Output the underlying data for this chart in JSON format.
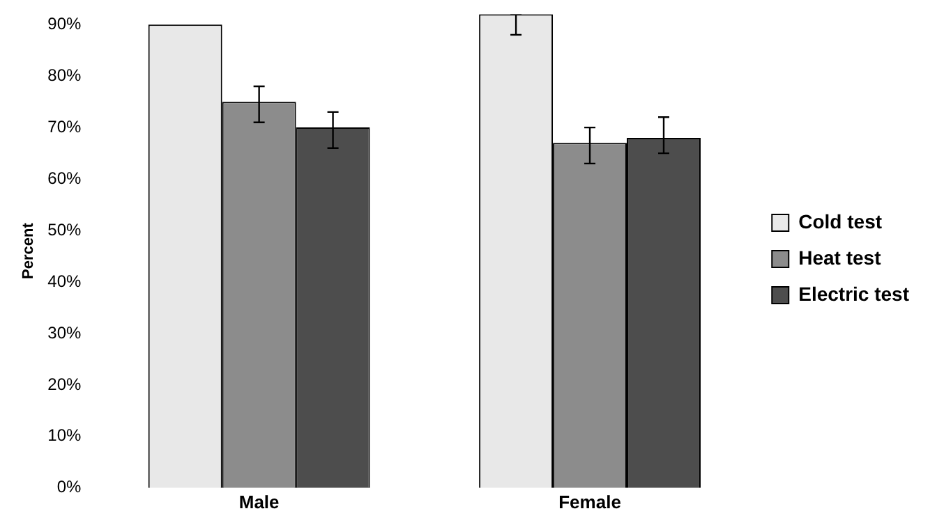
{
  "chart_data": {
    "type": "bar",
    "ylabel": "Percent",
    "categories": [
      "Male",
      "Female"
    ],
    "series": [
      {
        "name": "Cold test",
        "color": "#e8e8e8",
        "values": [
          90,
          92
        ],
        "errors": [
          null,
          [
            88,
            92
          ]
        ]
      },
      {
        "name": "Heat test",
        "color": "#8c8c8c",
        "values": [
          75,
          67
        ],
        "errors": [
          [
            71,
            78
          ],
          [
            63,
            70
          ]
        ]
      },
      {
        "name": "Electric test",
        "color": "#4d4d4d",
        "values": [
          70,
          68
        ],
        "errors": [
          [
            66,
            73
          ],
          [
            65,
            72
          ]
        ]
      }
    ],
    "ylim": [
      0,
      92
    ],
    "yticks": [
      {
        "value": 0,
        "label": "0%"
      },
      {
        "value": 10,
        "label": "10%"
      },
      {
        "value": 20,
        "label": "20%"
      },
      {
        "value": 30,
        "label": "30%"
      },
      {
        "value": 40,
        "label": "40%"
      },
      {
        "value": 50,
        "label": "50%"
      },
      {
        "value": 60,
        "label": "60%"
      },
      {
        "value": 70,
        "label": "70%"
      },
      {
        "value": 80,
        "label": "80%"
      },
      {
        "value": 90,
        "label": "90%"
      }
    ],
    "grid": false,
    "legend": "right"
  }
}
